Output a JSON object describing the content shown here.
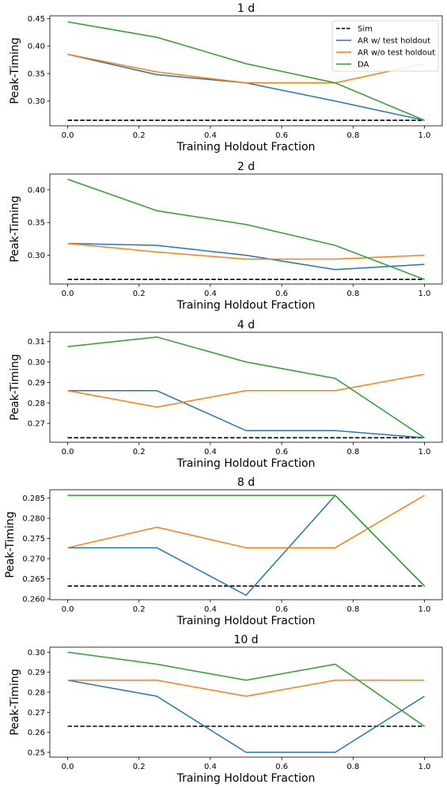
{
  "chart_data": [
    {
      "type": "line",
      "title": "1 d",
      "xlabel": "Training Holdout Fraction",
      "ylabel": "Peak-Timing",
      "xlim": [
        -0.05,
        1.05
      ],
      "ylim": [
        0.255,
        0.455
      ],
      "xticks": [
        0.0,
        0.2,
        0.4,
        0.6,
        0.8,
        1.0
      ],
      "xtick_labels": [
        "0.0",
        "0.2",
        "0.4",
        "0.6",
        "0.8",
        "1.0"
      ],
      "yticks": [
        0.3,
        0.35,
        0.4,
        0.45
      ],
      "ytick_labels": [
        "0.30",
        "0.35",
        "0.40",
        "0.45"
      ],
      "legend": "top-right",
      "sim": 0.265,
      "x": [
        0.0,
        0.25,
        0.5,
        0.75,
        1.0
      ],
      "series": [
        {
          "name": "AR w/ test holdout",
          "color": "#1f77b4",
          "values": [
            0.385,
            0.348,
            0.333,
            0.3,
            0.265
          ]
        },
        {
          "name": "AR w/o test holdout",
          "color": "#ff7f0e",
          "values": [
            0.385,
            0.353,
            0.333,
            0.333,
            0.368
          ]
        },
        {
          "name": "DA",
          "color": "#2ca02c",
          "values": [
            0.444,
            0.416,
            0.368,
            0.333,
            0.265
          ]
        }
      ]
    },
    {
      "type": "line",
      "title": "2 d",
      "xlabel": "Training Holdout Fraction",
      "ylabel": "Peak-Timing",
      "xlim": [
        -0.05,
        1.05
      ],
      "ylim": [
        0.256,
        0.424
      ],
      "xticks": [
        0.0,
        0.2,
        0.4,
        0.6,
        0.8,
        1.0
      ],
      "xtick_labels": [
        "0.0",
        "0.2",
        "0.4",
        "0.6",
        "0.8",
        "1.0"
      ],
      "yticks": [
        0.3,
        0.35,
        0.4
      ],
      "ytick_labels": [
        "0.30",
        "0.35",
        "0.40"
      ],
      "sim": 0.263,
      "x": [
        0.0,
        0.25,
        0.5,
        0.75,
        1.0
      ],
      "series": [
        {
          "name": "AR w/ test holdout",
          "color": "#1f77b4",
          "values": [
            0.318,
            0.315,
            0.3,
            0.278,
            0.286
          ]
        },
        {
          "name": "AR w/o test holdout",
          "color": "#ff7f0e",
          "values": [
            0.318,
            0.305,
            0.294,
            0.294,
            0.3
          ]
        },
        {
          "name": "DA",
          "color": "#2ca02c",
          "values": [
            0.416,
            0.368,
            0.347,
            0.315,
            0.263
          ]
        }
      ]
    },
    {
      "type": "line",
      "title": "4 d",
      "xlabel": "Training Holdout Fraction",
      "ylabel": "Peak-Timing",
      "xlim": [
        -0.05,
        1.05
      ],
      "ylim": [
        0.2608,
        0.3145
      ],
      "xticks": [
        0.0,
        0.2,
        0.4,
        0.6,
        0.8,
        1.0
      ],
      "xtick_labels": [
        "0.0",
        "0.2",
        "0.4",
        "0.6",
        "0.8",
        "1.0"
      ],
      "yticks": [
        0.27,
        0.28,
        0.29,
        0.3,
        0.31
      ],
      "ytick_labels": [
        "0.27",
        "0.28",
        "0.29",
        "0.30",
        "0.31"
      ],
      "sim": 0.263,
      "x": [
        0.0,
        0.25,
        0.5,
        0.75,
        1.0
      ],
      "series": [
        {
          "name": "AR w/ test holdout",
          "color": "#1f77b4",
          "values": [
            0.286,
            0.286,
            0.2665,
            0.2665,
            0.263
          ]
        },
        {
          "name": "AR w/o test holdout",
          "color": "#ff7f0e",
          "values": [
            0.286,
            0.278,
            0.286,
            0.286,
            0.294
          ]
        },
        {
          "name": "DA",
          "color": "#2ca02c",
          "values": [
            0.3075,
            0.3122,
            0.3,
            0.292,
            0.263
          ]
        }
      ]
    },
    {
      "type": "line",
      "title": "8 d",
      "xlabel": "Training Holdout Fraction",
      "ylabel": "Peak-Timing",
      "xlim": [
        -0.05,
        1.05
      ],
      "ylim": [
        0.2598,
        0.2871
      ],
      "xticks": [
        0.0,
        0.2,
        0.4,
        0.6,
        0.8,
        1.0
      ],
      "xtick_labels": [
        "0.0",
        "0.2",
        "0.4",
        "0.6",
        "0.8",
        "1.0"
      ],
      "yticks": [
        0.26,
        0.265,
        0.27,
        0.275,
        0.28,
        0.285
      ],
      "ytick_labels": [
        "0.260",
        "0.265",
        "0.270",
        "0.275",
        "0.280",
        "0.285"
      ],
      "sim": 0.2632,
      "x": [
        0.0,
        0.25,
        0.5,
        0.75,
        1.0
      ],
      "series": [
        {
          "name": "AR w/ test holdout",
          "color": "#1f77b4",
          "values": [
            0.2727,
            0.2727,
            0.2609,
            0.2857,
            0.2632
          ]
        },
        {
          "name": "AR w/o test holdout",
          "color": "#ff7f0e",
          "values": [
            0.2727,
            0.2778,
            0.2727,
            0.2727,
            0.2857
          ]
        },
        {
          "name": "DA",
          "color": "#2ca02c",
          "values": [
            0.2857,
            0.2857,
            0.2857,
            0.2857,
            0.2632
          ]
        }
      ]
    },
    {
      "type": "line",
      "title": "10 d",
      "xlabel": "Training Holdout Fraction",
      "ylabel": "Peak-Timing",
      "xlim": [
        -0.05,
        1.05
      ],
      "ylim": [
        0.2476,
        0.3025
      ],
      "xticks": [
        0.0,
        0.2,
        0.4,
        0.6,
        0.8,
        1.0
      ],
      "xtick_labels": [
        "0.0",
        "0.2",
        "0.4",
        "0.6",
        "0.8",
        "1.0"
      ],
      "yticks": [
        0.25,
        0.26,
        0.27,
        0.28,
        0.29,
        0.3
      ],
      "ytick_labels": [
        "0.25",
        "0.26",
        "0.27",
        "0.28",
        "0.29",
        "0.30"
      ],
      "sim": 0.263,
      "x": [
        0.0,
        0.25,
        0.5,
        0.75,
        1.0
      ],
      "series": [
        {
          "name": "AR w/ test holdout",
          "color": "#1f77b4",
          "values": [
            0.286,
            0.278,
            0.25,
            0.25,
            0.278
          ]
        },
        {
          "name": "AR w/o test holdout",
          "color": "#ff7f0e",
          "values": [
            0.286,
            0.286,
            0.278,
            0.286,
            0.286
          ]
        },
        {
          "name": "DA",
          "color": "#2ca02c",
          "values": [
            0.3,
            0.294,
            0.286,
            0.294,
            0.263
          ]
        }
      ]
    }
  ],
  "legend": {
    "sim_label": "Sim",
    "sim_color": "#000000",
    "entries": [
      "AR w/ test holdout",
      "AR w/o test holdout",
      "DA"
    ]
  }
}
